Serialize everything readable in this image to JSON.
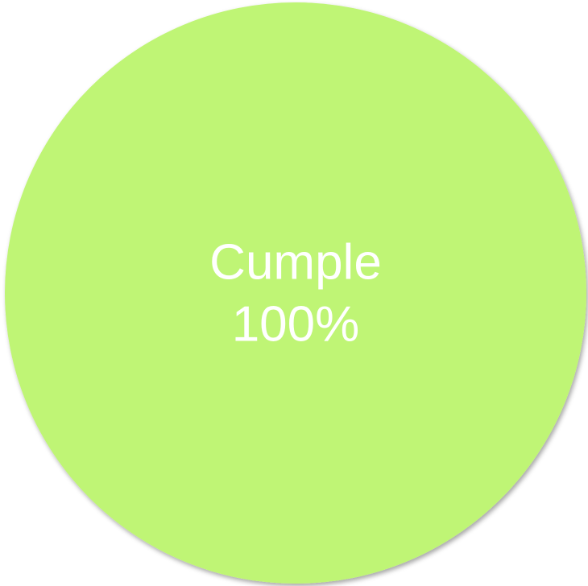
{
  "chart_data": {
    "type": "pie",
    "title": "",
    "slices": [
      {
        "label": "Cumple",
        "value": 100,
        "display_value": "100%",
        "color": "#bff574"
      }
    ]
  }
}
